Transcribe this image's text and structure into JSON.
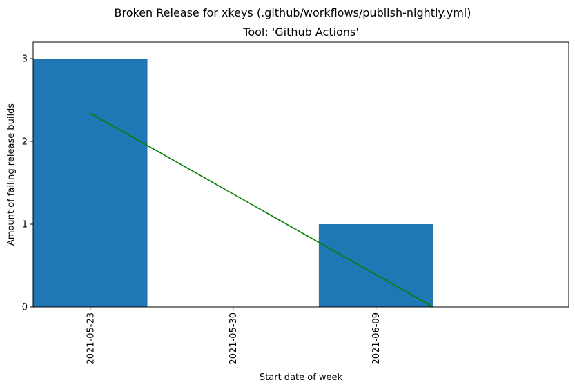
{
  "chart_data": {
    "type": "bar",
    "suptitle": "Broken Release for xkeys (.github/workflows/publish-nightly.yml)",
    "title": "Tool: 'Github Actions'",
    "xlabel": "Start date of week",
    "ylabel": "Amount of failing release builds",
    "categories": [
      "2021-05-23",
      "2021-05-30",
      "2021-06-09"
    ],
    "values": [
      3,
      0,
      1
    ],
    "ylim": [
      0,
      3.2
    ],
    "yticks": [
      0,
      1,
      2,
      3
    ],
    "bar_color": "#1f77b4",
    "trendline": {
      "color": "#008000",
      "x": [
        0,
        2.4
      ],
      "y": [
        2.34,
        0.0
      ]
    },
    "grid": false,
    "legend": "none"
  }
}
